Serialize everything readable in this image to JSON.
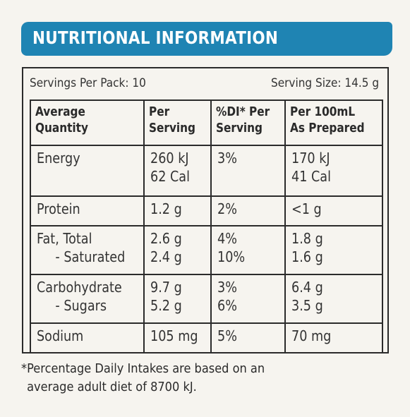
{
  "title": "NUTRITIONAL INFORMATION",
  "servings_per_pack": "Servings Per Pack: 10",
  "serving_size": "Serving Size: 14.5 g",
  "headers": [
    [
      "Average",
      "Quantity"
    ],
    [
      "Per",
      "Serving"
    ],
    [
      "%DI* Per",
      "Serving"
    ],
    [
      "Per 100mL",
      "As Prepared"
    ]
  ],
  "rows": [
    {
      "label": [
        "Energy"
      ],
      "per_serving": [
        "260 kJ",
        "62 Cal"
      ],
      "di": [
        "3%"
      ],
      "per_100ml": [
        "170 kJ",
        "41 Cal"
      ]
    },
    {
      "label": [
        "Protein"
      ],
      "per_serving": [
        "1.2 g"
      ],
      "di": [
        "2%"
      ],
      "per_100ml": [
        "<1 g"
      ]
    },
    {
      "label": [
        "Fat, Total",
        "- Saturated"
      ],
      "per_serving": [
        "2.6 g",
        "2.4 g"
      ],
      "di": [
        "4%",
        "10%"
      ],
      "per_100ml": [
        "1.8 g",
        "1.6 g"
      ]
    },
    {
      "label": [
        "Carbohydrate",
        "- Sugars"
      ],
      "per_serving": [
        "9.7 g",
        "5.2 g"
      ],
      "di": [
        "3%",
        "6%"
      ],
      "per_100ml": [
        "6.4 g",
        "3.5 g"
      ]
    },
    {
      "label": [
        "Sodium"
      ],
      "per_serving": [
        "105 mg"
      ],
      "di": [
        "5%"
      ],
      "per_100ml": [
        "70 mg"
      ]
    }
  ],
  "footnote": [
    "*Percentage Daily Intakes are based on an",
    "average adult diet of 8700 kJ."
  ],
  "colors": {
    "banner": "#1f84b3",
    "background": "#f6f4ef",
    "text": "#2a2a2a"
  }
}
